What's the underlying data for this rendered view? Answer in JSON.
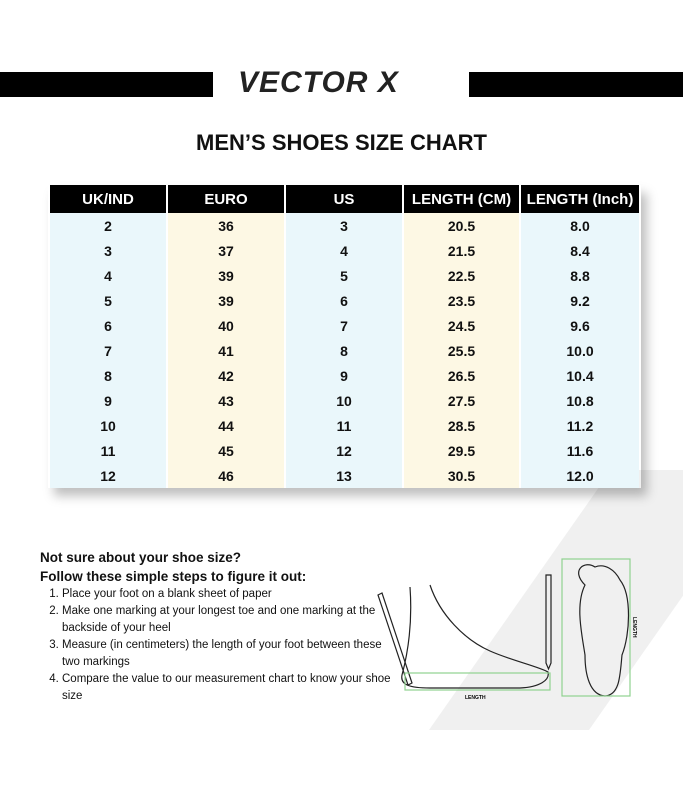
{
  "brand": "VECTOR X",
  "title": "MEN’S SHOES SIZE CHART",
  "table": {
    "headers": [
      "UK/IND",
      "EURO",
      "US",
      "LENGTH (CM)",
      "LENGTH (Inch)"
    ],
    "rows": [
      [
        "2",
        "36",
        "3",
        "20.5",
        "8.0"
      ],
      [
        "3",
        "37",
        "4",
        "21.5",
        "8.4"
      ],
      [
        "4",
        "39",
        "5",
        "22.5",
        "8.8"
      ],
      [
        "5",
        "39",
        "6",
        "23.5",
        "9.2"
      ],
      [
        "6",
        "40",
        "7",
        "24.5",
        "9.6"
      ],
      [
        "7",
        "41",
        "8",
        "25.5",
        "10.0"
      ],
      [
        "8",
        "42",
        "9",
        "26.5",
        "10.4"
      ],
      [
        "9",
        "43",
        "10",
        "27.5",
        "10.8"
      ],
      [
        "10",
        "44",
        "11",
        "28.5",
        "11.2"
      ],
      [
        "11",
        "45",
        "12",
        "29.5",
        "11.6"
      ],
      [
        "12",
        "46",
        "13",
        "30.5",
        "12.0"
      ]
    ]
  },
  "help": {
    "heading1": "Not sure about your shoe size?",
    "heading2": "Follow these simple steps to figure it out:",
    "steps": [
      "Place your foot on a blank sheet of paper",
      "Make one marking at your longest toe and one marking at the backside of your heel",
      "Measure (in centimeters) the length of your foot between these two markings",
      "Compare the value to our measurement chart to know your shoe size"
    ]
  },
  "illustration": {
    "length_label": "LENGTH",
    "accent": "#8fd18f"
  }
}
